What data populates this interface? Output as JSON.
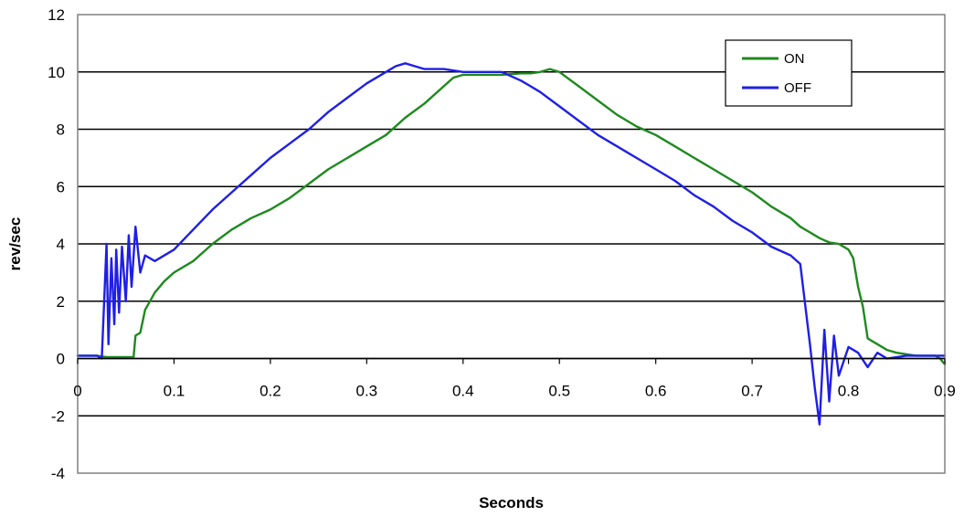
{
  "chart_data": {
    "type": "line",
    "title": "",
    "xlabel": "Seconds",
    "ylabel": "rev/sec",
    "xlim": [
      0,
      0.9
    ],
    "ylim": [
      -4,
      12
    ],
    "x_ticks": [
      0,
      0.1,
      0.2,
      0.3,
      0.4,
      0.5,
      0.6,
      0.7,
      0.8,
      0.9
    ],
    "x_tick_labels": [
      "0",
      "0.1",
      "0.2",
      "0.3",
      "0.4",
      "0.5",
      "0.6",
      "0.7",
      "0.8",
      "0.9"
    ],
    "y_ticks": [
      -4,
      -2,
      0,
      2,
      4,
      6,
      8,
      10,
      12
    ],
    "y_tick_labels": [
      "-4",
      "-2",
      "0",
      "2",
      "4",
      "6",
      "8",
      "10",
      "12"
    ],
    "grid": "horizontal",
    "legend_position": "top-right",
    "series": [
      {
        "name": "ON",
        "color": "#1e8a1e",
        "x": [
          0,
          0.01,
          0.02,
          0.03,
          0.04,
          0.05,
          0.058,
          0.06,
          0.065,
          0.07,
          0.075,
          0.08,
          0.09,
          0.1,
          0.12,
          0.14,
          0.16,
          0.18,
          0.2,
          0.22,
          0.24,
          0.26,
          0.28,
          0.3,
          0.32,
          0.34,
          0.36,
          0.38,
          0.39,
          0.4,
          0.42,
          0.44,
          0.46,
          0.47,
          0.48,
          0.49,
          0.5,
          0.52,
          0.54,
          0.56,
          0.58,
          0.6,
          0.62,
          0.64,
          0.66,
          0.68,
          0.7,
          0.72,
          0.74,
          0.75,
          0.76,
          0.77,
          0.78,
          0.79,
          0.8,
          0.805,
          0.81,
          0.815,
          0.82,
          0.825,
          0.83,
          0.84,
          0.85,
          0.86,
          0.87,
          0.88,
          0.89,
          0.895,
          0.9
        ],
        "y": [
          0.1,
          0.1,
          0.1,
          0.05,
          0.05,
          0.05,
          0.05,
          0.8,
          0.9,
          1.7,
          2.0,
          2.3,
          2.7,
          3.0,
          3.4,
          4.0,
          4.5,
          4.9,
          5.2,
          5.6,
          6.1,
          6.6,
          7.0,
          7.4,
          7.8,
          8.4,
          8.9,
          9.5,
          9.8,
          9.9,
          9.9,
          9.9,
          9.95,
          9.95,
          10.0,
          10.1,
          10.0,
          9.5,
          9.0,
          8.5,
          8.1,
          7.8,
          7.4,
          7.0,
          6.6,
          6.2,
          5.8,
          5.3,
          4.9,
          4.6,
          4.4,
          4.2,
          4.05,
          4.0,
          3.8,
          3.5,
          2.5,
          1.8,
          0.7,
          0.6,
          0.5,
          0.3,
          0.2,
          0.15,
          0.1,
          0.1,
          0.1,
          0.0,
          -0.2
        ]
      },
      {
        "name": "OFF",
        "color": "#1f1fe6",
        "x": [
          0,
          0.01,
          0.02,
          0.025,
          0.03,
          0.032,
          0.035,
          0.038,
          0.04,
          0.043,
          0.046,
          0.05,
          0.053,
          0.056,
          0.06,
          0.065,
          0.07,
          0.08,
          0.1,
          0.12,
          0.14,
          0.16,
          0.18,
          0.2,
          0.22,
          0.24,
          0.26,
          0.28,
          0.3,
          0.32,
          0.33,
          0.34,
          0.35,
          0.36,
          0.38,
          0.4,
          0.42,
          0.44,
          0.46,
          0.47,
          0.48,
          0.5,
          0.52,
          0.54,
          0.56,
          0.58,
          0.6,
          0.62,
          0.64,
          0.66,
          0.68,
          0.7,
          0.72,
          0.74,
          0.75,
          0.76,
          0.765,
          0.77,
          0.775,
          0.78,
          0.785,
          0.79,
          0.8,
          0.81,
          0.82,
          0.83,
          0.84,
          0.86,
          0.88,
          0.9
        ],
        "y": [
          0.1,
          0.1,
          0.1,
          0.0,
          4.0,
          0.5,
          3.5,
          1.2,
          3.8,
          1.6,
          3.9,
          2.0,
          4.3,
          2.5,
          4.6,
          3.0,
          3.6,
          3.4,
          3.8,
          4.5,
          5.2,
          5.8,
          6.4,
          7.0,
          7.5,
          8.0,
          8.6,
          9.1,
          9.6,
          10.0,
          10.2,
          10.3,
          10.2,
          10.1,
          10.1,
          10.0,
          10.0,
          10.0,
          9.7,
          9.5,
          9.3,
          8.8,
          8.3,
          7.8,
          7.4,
          7.0,
          6.6,
          6.2,
          5.7,
          5.3,
          4.8,
          4.4,
          3.9,
          3.6,
          3.3,
          0.5,
          -1.0,
          -2.3,
          1.0,
          -1.5,
          0.8,
          -0.6,
          0.4,
          0.2,
          -0.3,
          0.2,
          0.0,
          0.1,
          0.1,
          0.1
        ]
      }
    ]
  }
}
